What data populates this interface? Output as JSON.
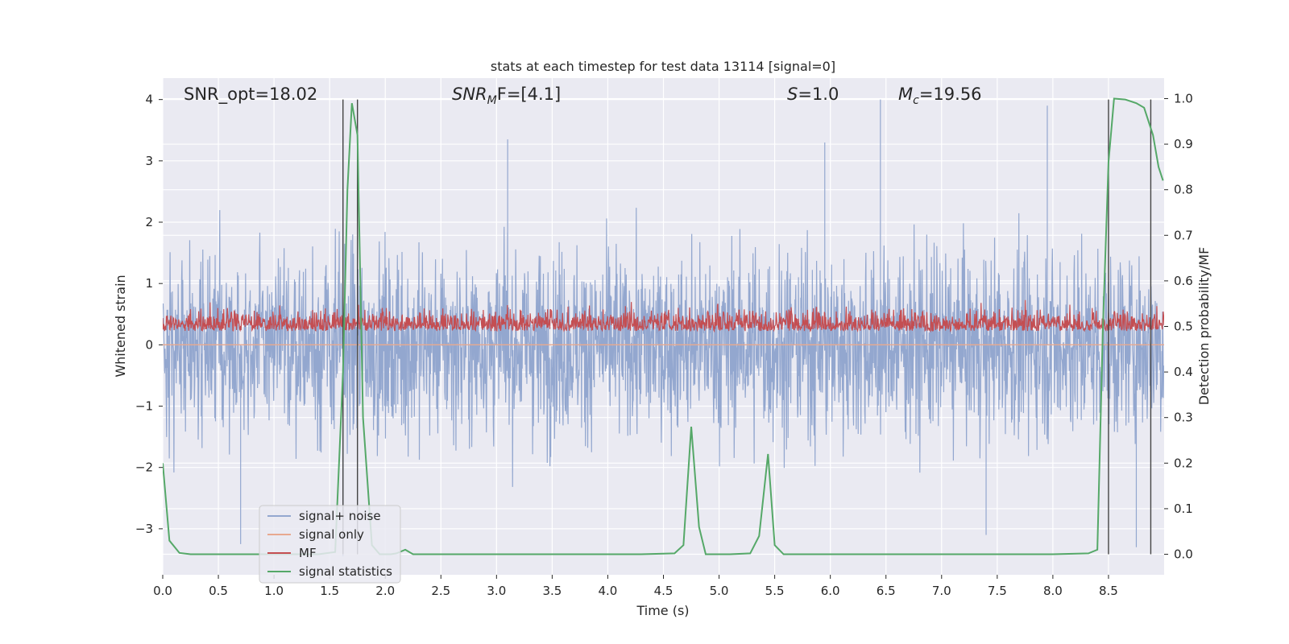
{
  "chart_data": {
    "type": "line",
    "title": "stats at each timestep for test data 13114 [signal=0]",
    "xlabel": "Time (s)",
    "ylabel_left": "Whitened strain",
    "ylabel_right": "Detection probability/MF",
    "xlim": [
      0.0,
      9.0
    ],
    "ylim_left": [
      -3.75,
      4.35
    ],
    "ylim_right": [
      -0.045,
      1.045
    ],
    "xticks": [
      0.0,
      0.5,
      1.0,
      1.5,
      2.0,
      2.5,
      3.0,
      3.5,
      4.0,
      4.5,
      5.0,
      5.5,
      6.0,
      6.5,
      7.0,
      7.5,
      8.0,
      8.5
    ],
    "xtick_labels": [
      "0.0",
      "0.5",
      "1.0",
      "1.5",
      "2.0",
      "2.5",
      "3.0",
      "3.5",
      "4.0",
      "4.5",
      "5.0",
      "5.5",
      "6.0",
      "6.5",
      "7.0",
      "7.5",
      "8.0",
      "8.5"
    ],
    "yticks_left": [
      -3,
      -2,
      -1,
      0,
      1,
      2,
      3,
      4
    ],
    "ytick_labels_left": [
      "−3",
      "−2",
      "−1",
      "0",
      "1",
      "2",
      "3",
      "4"
    ],
    "yticks_right": [
      0.0,
      0.1,
      0.2,
      0.3,
      0.4,
      0.5,
      0.6,
      0.7,
      0.8,
      0.9,
      1.0
    ],
    "ytick_labels_right": [
      "0.0",
      "0.1",
      "0.2",
      "0.3",
      "0.4",
      "0.5",
      "0.6",
      "0.7",
      "0.8",
      "0.9",
      "1.0"
    ],
    "grid": true,
    "annotations": {
      "snr_opt": "SNR_opt=18.02",
      "snr_mf_prefix": "SNR",
      "snr_mf_sub": "M",
      "snr_mf_suffix": "F=[4.1]",
      "s_label": "S",
      "s_value": "=1.0",
      "mc_label": "M",
      "mc_sub": "c",
      "mc_value": "=19.56"
    },
    "legend": {
      "location": "lower-left",
      "entries": [
        {
          "label": "signal+ noise",
          "color": "#93a7cf"
        },
        {
          "label": "signal only",
          "color": "#e8a98f"
        },
        {
          "label": "MF",
          "color": "#c44e52"
        },
        {
          "label": "signal statistics",
          "color": "#55a868"
        }
      ]
    },
    "series": [
      {
        "name": "signal+ noise",
        "axis": "left",
        "color": "#93a7cf",
        "description": "whitened strain noise, approx. range -3.5 to 4.0",
        "x_range": [
          0.0,
          9.0
        ],
        "extremes": [
          [
            1.62,
            3.4
          ],
          [
            3.1,
            3.35
          ],
          [
            6.45,
            4.0
          ],
          [
            5.95,
            3.3
          ],
          [
            7.95,
            3.9
          ],
          [
            1.62,
            -3.45
          ],
          [
            7.4,
            -3.1
          ],
          [
            8.75,
            -3.3
          ],
          [
            0.7,
            -3.25
          ]
        ]
      },
      {
        "name": "signal only",
        "axis": "left",
        "color": "#e8a98f",
        "x": [
          0.0,
          9.0
        ],
        "y": [
          0.0,
          0.0
        ]
      },
      {
        "name": "MF",
        "axis": "right",
        "color": "#c44e52",
        "description": "matched-filter output, approx. 0.47 to 0.58",
        "range": [
          0.47,
          0.58
        ]
      },
      {
        "name": "signal statistics",
        "axis": "right",
        "color": "#55a868",
        "x": [
          0.0,
          0.06,
          0.15,
          0.25,
          0.4,
          0.6,
          0.8,
          1.0,
          1.2,
          1.4,
          1.55,
          1.62,
          1.66,
          1.7,
          1.75,
          1.8,
          1.88,
          1.95,
          2.05,
          2.1,
          2.18,
          2.25,
          2.35,
          2.5,
          3.0,
          3.5,
          4.0,
          4.3,
          4.6,
          4.68,
          4.75,
          4.82,
          4.88,
          4.95,
          5.1,
          5.28,
          5.36,
          5.44,
          5.5,
          5.58,
          6.0,
          6.5,
          7.0,
          7.5,
          8.0,
          8.32,
          8.4,
          8.45,
          8.5,
          8.55,
          8.65,
          8.75,
          8.82,
          8.9,
          8.95,
          8.99
        ],
        "y": [
          0.2,
          0.03,
          0.003,
          0.0,
          0.0,
          0.0,
          0.0,
          0.0,
          0.0,
          0.0,
          0.005,
          0.4,
          0.8,
          0.99,
          0.92,
          0.3,
          0.02,
          0.0,
          0.0,
          0.002,
          0.01,
          0.0,
          0.0,
          0.0,
          0.0,
          0.0,
          0.0,
          0.0,
          0.002,
          0.02,
          0.28,
          0.06,
          0.0,
          0.0,
          0.0,
          0.002,
          0.04,
          0.22,
          0.02,
          0.0,
          0.0,
          0.0,
          0.0,
          0.0,
          0.0,
          0.002,
          0.01,
          0.5,
          0.86,
          1.0,
          0.998,
          0.99,
          0.98,
          0.92,
          0.85,
          0.82
        ]
      }
    ],
    "vertical_lines": [
      {
        "x": 1.62,
        "ymax_left": 4.0,
        "ymin_right": 0.0,
        "color": "#444444"
      },
      {
        "x": 1.75,
        "ymax_left": 4.0,
        "ymin_right": 0.0,
        "color": "#444444"
      },
      {
        "x": 8.5,
        "ymax_left": 4.0,
        "ymin_right": 0.0,
        "color": "#444444"
      },
      {
        "x": 8.88,
        "ymax_left": 4.0,
        "ymin_right": 0.0,
        "color": "#444444"
      }
    ]
  }
}
